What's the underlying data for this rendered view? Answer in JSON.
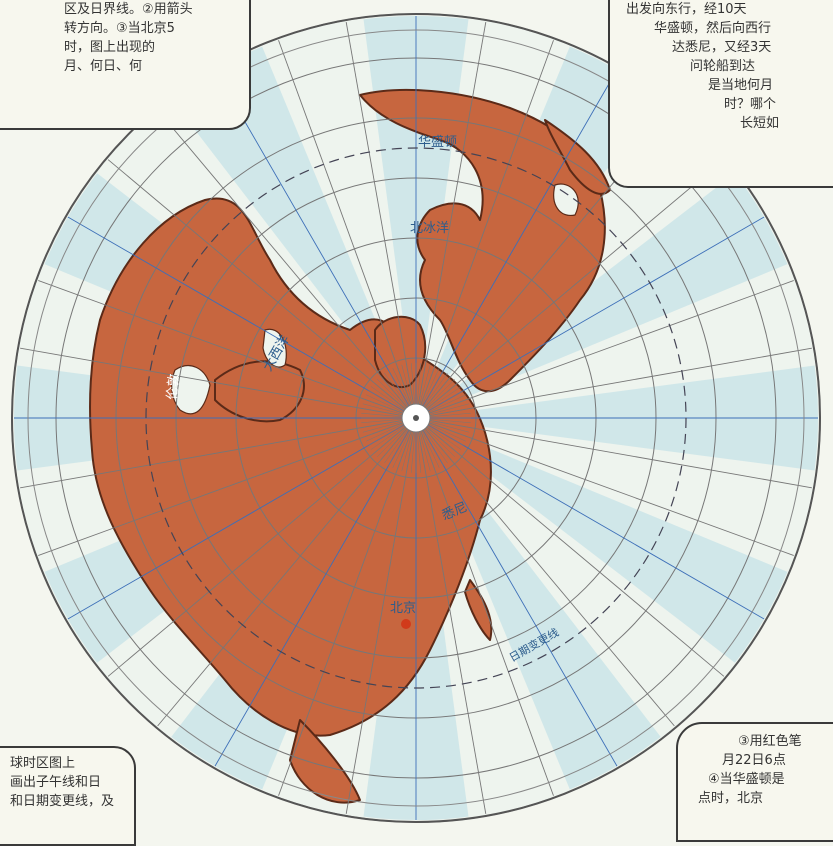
{
  "colors": {
    "land": "#c7663f",
    "land_border": "#5b2a18",
    "ocean": "#e9f1ec",
    "zone_band": "#b8dde5",
    "grid_line": "#777777",
    "meridian_blue": "#3d6fb8",
    "dateline": "#555555",
    "beijing_dot": "#d13a1a"
  },
  "notes": {
    "top_left": [
      "区及日界线。②用箭头",
      "转方向。③当北京5",
      "时，图上出现的",
      "月、何日、何"
    ],
    "top_right": [
      "出发向东行，经10天",
      "华盛顿，然后向西行",
      "达悉尼，又经3天",
      "问轮船到达",
      "是当地何月",
      "时？哪个",
      "长短如"
    ],
    "bottom_left": [
      "球时区图上",
      "画出子午线和日",
      "和日期变更线，及"
    ],
    "bottom_right": [
      "③用红色笔",
      "月22日6点",
      "④当华盛顿是",
      "点时，北京"
    ]
  },
  "labels": {
    "washington": "华盛顿",
    "london": "伦敦",
    "sydney": "悉尼",
    "beijing": "北京",
    "arctic_region": "北冰洋",
    "atlantic": "大西洋",
    "dateline": "日期变更线"
  },
  "icons": {
    "pole": "north-pole-center",
    "beijing_marker": "red-dot"
  }
}
